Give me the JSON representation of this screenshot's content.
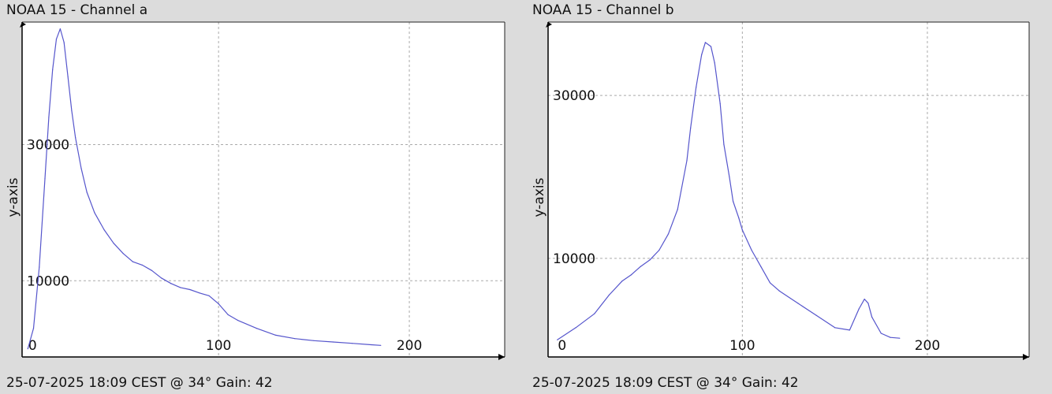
{
  "chart_data": [
    {
      "type": "line",
      "title": "NOAA 15 - Channel a",
      "footer": "25-07-2025 18:09 CEST @ 34° Gain: 42",
      "ylabel": "y-axis",
      "xlabel": "",
      "xlim": [
        -3,
        250
      ],
      "ylim": [
        -1200,
        48000
      ],
      "xticks": [
        0,
        100,
        200
      ],
      "yticks": [
        10000,
        30000
      ],
      "grid": true,
      "line_color": "#5555cc",
      "series": [
        {
          "x": [
            0,
            3,
            6,
            9,
            11,
            13,
            15,
            17,
            19,
            21,
            23,
            25,
            28,
            31,
            35,
            40,
            45,
            50,
            55,
            60,
            65,
            70,
            75,
            80,
            85,
            90,
            95,
            100,
            105,
            110,
            120,
            130,
            140,
            150,
            160,
            170,
            180,
            185
          ],
          "y": [
            0,
            3000,
            12000,
            25000,
            34000,
            41000,
            45500,
            47000,
            45000,
            40000,
            35000,
            31000,
            26500,
            23000,
            20000,
            17500,
            15500,
            14000,
            12800,
            12300,
            11500,
            10400,
            9600,
            9000,
            8700,
            8200,
            7800,
            6600,
            5000,
            4200,
            3000,
            2000,
            1500,
            1200,
            1000,
            800,
            600,
            500
          ]
        }
      ]
    },
    {
      "type": "line",
      "title": "NOAA 15 - Channel b",
      "footer": "25-07-2025 18:09 CEST @ 34° Gain: 42",
      "ylabel": "y-axis",
      "xlabel": "",
      "xlim": [
        -5,
        255
      ],
      "ylim": [
        -2100,
        39000
      ],
      "xticks": [
        0,
        100,
        200
      ],
      "yticks": [
        10000,
        30000
      ],
      "grid": true,
      "line_color": "#5555cc",
      "series": [
        {
          "x": [
            0,
            10,
            20,
            28,
            35,
            40,
            45,
            50,
            55,
            60,
            65,
            70,
            72,
            75,
            78,
            80,
            83,
            85,
            88,
            90,
            93,
            95,
            98,
            100,
            105,
            110,
            115,
            120,
            130,
            140,
            150,
            158,
            163,
            166,
            168,
            170,
            175,
            180,
            185
          ],
          "y": [
            0,
            1500,
            3200,
            5500,
            7200,
            8000,
            9000,
            9800,
            11000,
            13000,
            16000,
            22000,
            26000,
            31000,
            35000,
            36500,
            36000,
            34000,
            29000,
            24000,
            20000,
            17000,
            15000,
            13500,
            11000,
            9000,
            7000,
            6000,
            4500,
            3000,
            1500,
            1200,
            3800,
            5000,
            4500,
            2800,
            800,
            300,
            200
          ]
        }
      ]
    }
  ]
}
